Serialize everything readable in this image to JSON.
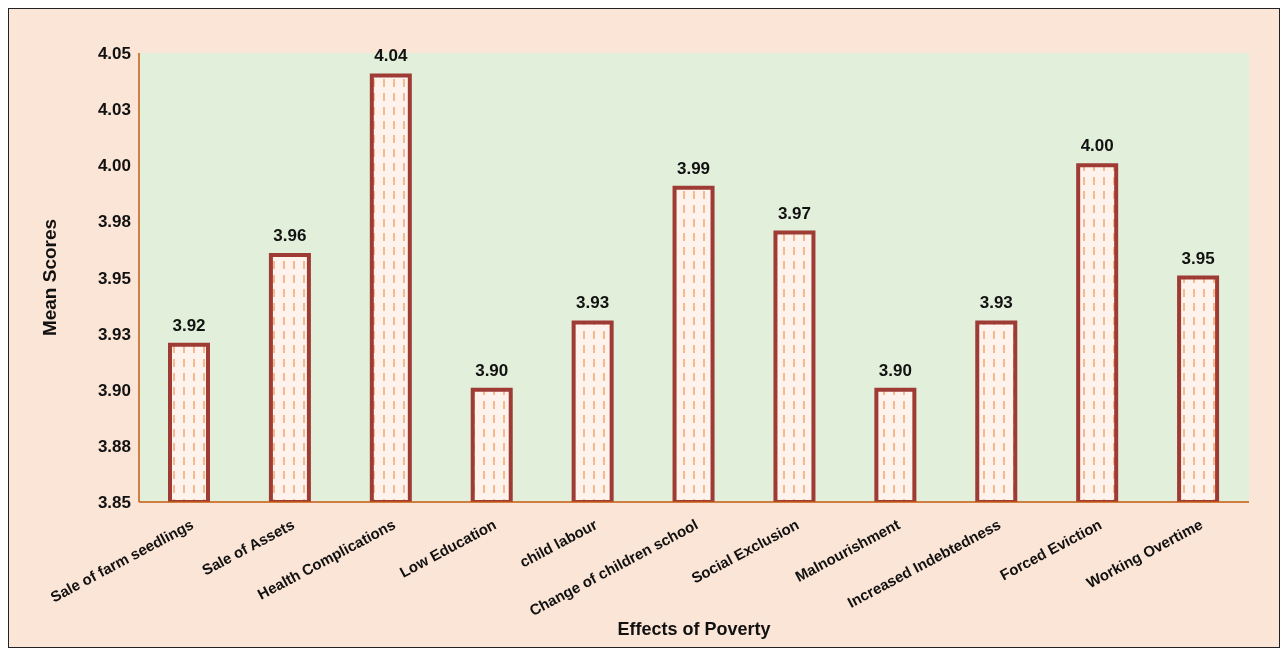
{
  "chart_data": {
    "type": "bar",
    "xlabel": "Effects of Poverty",
    "ylabel": "Mean Scores",
    "categories": [
      "Sale of farm seedlings",
      "Sale of Assets",
      "Health Complications",
      "Low Education",
      "child labour",
      "Change of children school",
      "Social Exclusion",
      "Malnourishment",
      "Increased Indebtedness",
      "Forced Eviction",
      "Working Overtime"
    ],
    "values": [
      3.92,
      3.96,
      4.04,
      3.9,
      3.93,
      3.99,
      3.97,
      3.9,
      3.93,
      4.0,
      3.95
    ],
    "color": "#9e3b34",
    "ylim": [
      3.85,
      4.05
    ],
    "yticks": [
      {
        "value": 3.85,
        "label": "3.85"
      },
      {
        "value": 3.875,
        "label": "3.88"
      },
      {
        "value": 3.9,
        "label": "3.90"
      },
      {
        "value": 3.925,
        "label": "3.93"
      },
      {
        "value": 3.95,
        "label": "3.95"
      },
      {
        "value": 3.975,
        "label": "3.98"
      },
      {
        "value": 4.0,
        "label": "4.00"
      },
      {
        "value": 4.025,
        "label": "4.03"
      },
      {
        "value": 4.05,
        "label": "4.05"
      }
    ],
    "value_labels": [
      "3.92",
      "3.96",
      "4.04",
      "3.90",
      "3.93",
      "3.99",
      "3.97",
      "3.90",
      "3.93",
      "4.00",
      "3.95"
    ],
    "legend": false
  }
}
